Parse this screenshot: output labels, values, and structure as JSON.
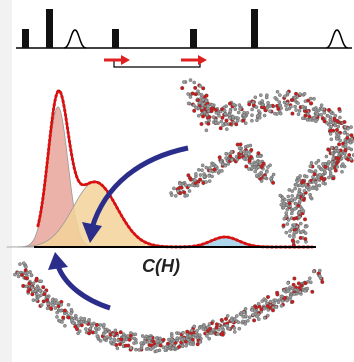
{
  "axis_label": "C(H)"
}
